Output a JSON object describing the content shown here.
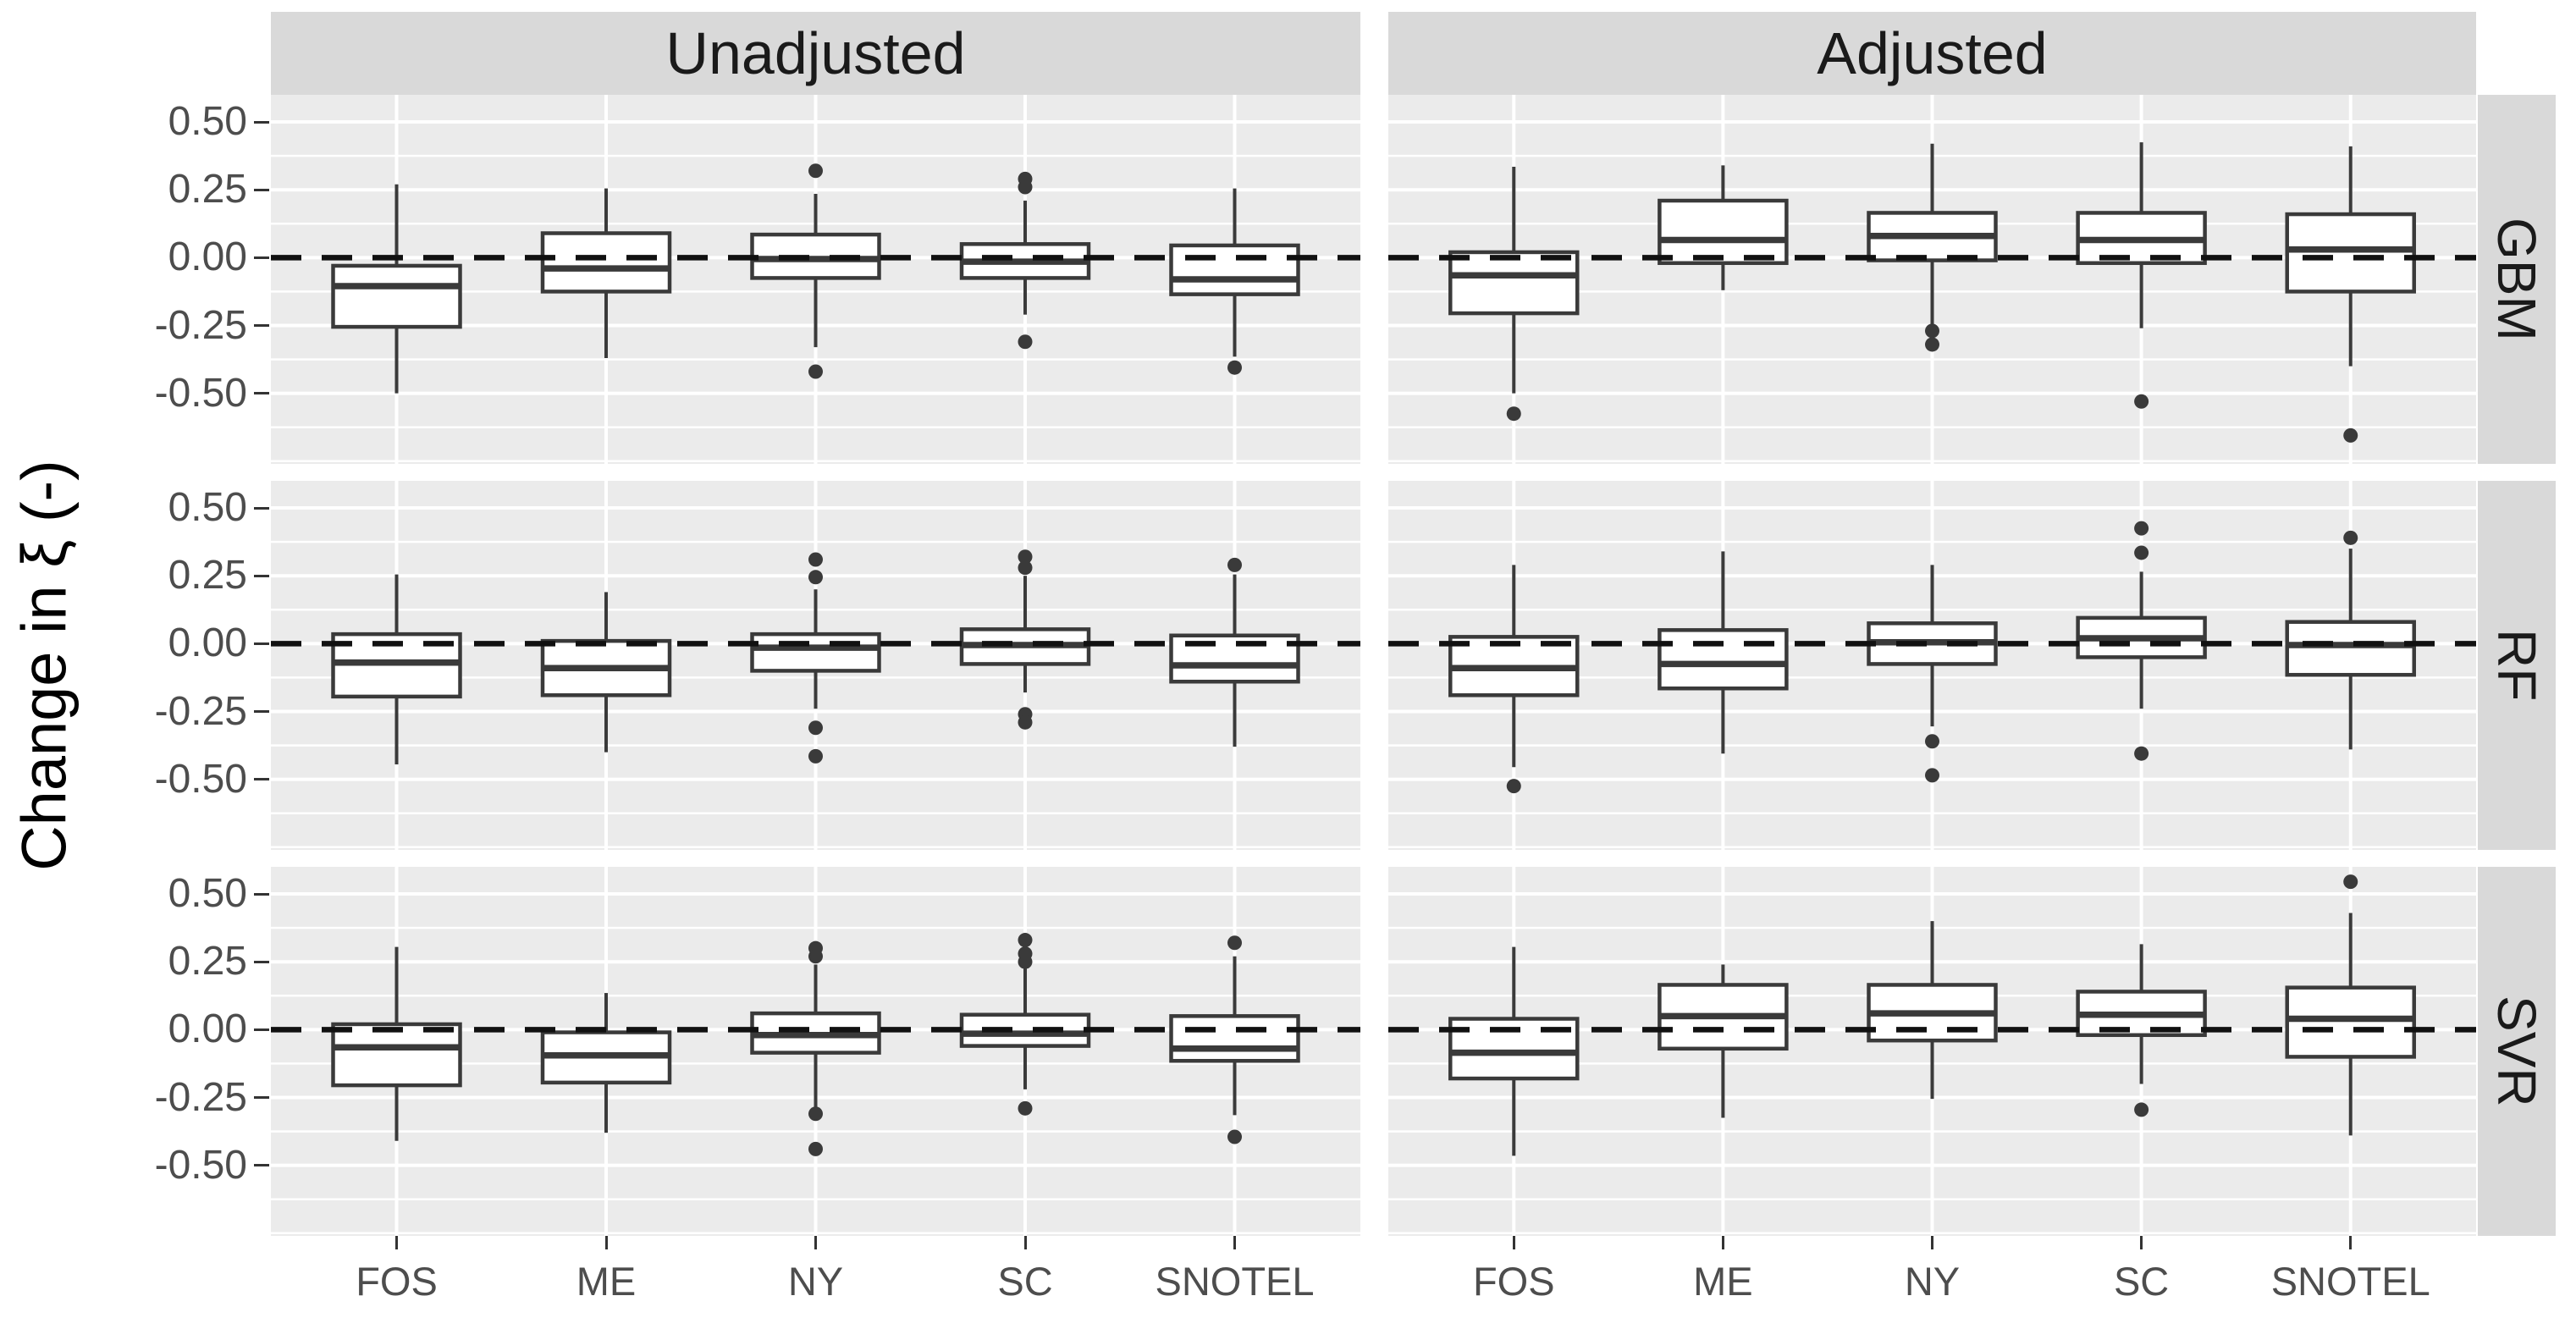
{
  "chart_data": {
    "type": "boxplot",
    "title": "",
    "ylabel": "Change in ξ (-)",
    "facet_columns": [
      "Unadjusted",
      "Adjusted"
    ],
    "facet_rows": [
      "GBM",
      "RF",
      "SVR"
    ],
    "categories": [
      "FOS",
      "ME",
      "NY",
      "SC",
      "SNOTEL"
    ],
    "y_axis": {
      "tick_labels": [
        "0.50",
        "0.25",
        "0.00",
        "-0.25",
        "-0.50"
      ],
      "tick_values": [
        0.5,
        0.25,
        0.0,
        -0.25,
        -0.5
      ],
      "minor_values": [
        0.375,
        0.125,
        -0.125,
        -0.375,
        -0.625,
        -0.75
      ],
      "ymax": 0.6,
      "ymin": -0.76,
      "grid": "on"
    },
    "reference_line": {
      "value": 0.0,
      "style": "dashed"
    },
    "panels": [
      {
        "facet_col": "Unadjusted",
        "facet_row": "GBM",
        "boxes": [
          {
            "category": "FOS",
            "whisker_low": -0.5,
            "q1": -0.255,
            "median": -0.105,
            "q3": -0.03,
            "whisker_high": 0.27,
            "outliers": []
          },
          {
            "category": "ME",
            "whisker_low": -0.37,
            "q1": -0.125,
            "median": -0.04,
            "q3": 0.09,
            "whisker_high": 0.255,
            "outliers": []
          },
          {
            "category": "NY",
            "whisker_low": -0.33,
            "q1": -0.075,
            "median": -0.005,
            "q3": 0.085,
            "whisker_high": 0.235,
            "outliers": [
              0.32,
              -0.42
            ]
          },
          {
            "category": "SC",
            "whisker_low": -0.21,
            "q1": -0.075,
            "median": -0.015,
            "q3": 0.05,
            "whisker_high": 0.21,
            "outliers": [
              0.29,
              0.26,
              -0.31
            ]
          },
          {
            "category": "SNOTEL",
            "whisker_low": -0.365,
            "q1": -0.135,
            "median": -0.08,
            "q3": 0.045,
            "whisker_high": 0.255,
            "outliers": [
              -0.405
            ]
          }
        ]
      },
      {
        "facet_col": "Adjusted",
        "facet_row": "GBM",
        "boxes": [
          {
            "category": "FOS",
            "whisker_low": -0.5,
            "q1": -0.205,
            "median": -0.065,
            "q3": 0.02,
            "whisker_high": 0.335,
            "outliers": [
              -0.575
            ]
          },
          {
            "category": "ME",
            "whisker_low": -0.12,
            "q1": -0.02,
            "median": 0.065,
            "q3": 0.21,
            "whisker_high": 0.34,
            "outliers": []
          },
          {
            "category": "NY",
            "whisker_low": -0.255,
            "q1": -0.01,
            "median": 0.08,
            "q3": 0.165,
            "whisker_high": 0.42,
            "outliers": [
              -0.27,
              -0.32
            ]
          },
          {
            "category": "SC",
            "whisker_low": -0.26,
            "q1": -0.02,
            "median": 0.065,
            "q3": 0.165,
            "whisker_high": 0.425,
            "outliers": [
              -0.53
            ]
          },
          {
            "category": "SNOTEL",
            "whisker_low": -0.4,
            "q1": -0.125,
            "median": 0.03,
            "q3": 0.16,
            "whisker_high": 0.41,
            "outliers": [
              -0.655
            ]
          }
        ]
      },
      {
        "facet_col": "Unadjusted",
        "facet_row": "RF",
        "boxes": [
          {
            "category": "FOS",
            "whisker_low": -0.445,
            "q1": -0.195,
            "median": -0.07,
            "q3": 0.035,
            "whisker_high": 0.255,
            "outliers": []
          },
          {
            "category": "ME",
            "whisker_low": -0.4,
            "q1": -0.19,
            "median": -0.09,
            "q3": 0.01,
            "whisker_high": 0.19,
            "outliers": []
          },
          {
            "category": "NY",
            "whisker_low": -0.24,
            "q1": -0.1,
            "median": -0.015,
            "q3": 0.035,
            "whisker_high": 0.2,
            "outliers": [
              0.31,
              0.245,
              -0.31,
              -0.415
            ]
          },
          {
            "category": "SC",
            "whisker_low": -0.18,
            "q1": -0.075,
            "median": -0.005,
            "q3": 0.053,
            "whisker_high": 0.25,
            "outliers": [
              0.32,
              0.28,
              -0.26,
              -0.29
            ]
          },
          {
            "category": "SNOTEL",
            "whisker_low": -0.38,
            "q1": -0.14,
            "median": -0.08,
            "q3": 0.03,
            "whisker_high": 0.255,
            "outliers": [
              0.29
            ]
          }
        ]
      },
      {
        "facet_col": "Adjusted",
        "facet_row": "RF",
        "boxes": [
          {
            "category": "FOS",
            "whisker_low": -0.455,
            "q1": -0.19,
            "median": -0.09,
            "q3": 0.025,
            "whisker_high": 0.29,
            "outliers": [
              -0.525
            ]
          },
          {
            "category": "ME",
            "whisker_low": -0.405,
            "q1": -0.165,
            "median": -0.075,
            "q3": 0.05,
            "whisker_high": 0.34,
            "outliers": []
          },
          {
            "category": "NY",
            "whisker_low": -0.305,
            "q1": -0.075,
            "median": 0.005,
            "q3": 0.075,
            "whisker_high": 0.29,
            "outliers": [
              -0.36,
              -0.485
            ]
          },
          {
            "category": "SC",
            "whisker_low": -0.24,
            "q1": -0.05,
            "median": 0.02,
            "q3": 0.095,
            "whisker_high": 0.265,
            "outliers": [
              0.425,
              0.335,
              -0.405
            ]
          },
          {
            "category": "SNOTEL",
            "whisker_low": -0.39,
            "q1": -0.115,
            "median": -0.005,
            "q3": 0.08,
            "whisker_high": 0.35,
            "outliers": [
              0.39
            ]
          }
        ]
      },
      {
        "facet_col": "Unadjusted",
        "facet_row": "SVR",
        "boxes": [
          {
            "category": "FOS",
            "whisker_low": -0.41,
            "q1": -0.205,
            "median": -0.065,
            "q3": 0.02,
            "whisker_high": 0.305,
            "outliers": []
          },
          {
            "category": "ME",
            "whisker_low": -0.38,
            "q1": -0.195,
            "median": -0.095,
            "q3": -0.01,
            "whisker_high": 0.135,
            "outliers": []
          },
          {
            "category": "NY",
            "whisker_low": -0.3,
            "q1": -0.085,
            "median": -0.02,
            "q3": 0.06,
            "whisker_high": 0.24,
            "outliers": [
              0.3,
              0.27,
              -0.31,
              -0.44
            ]
          },
          {
            "category": "SC",
            "whisker_low": -0.22,
            "q1": -0.06,
            "median": -0.015,
            "q3": 0.055,
            "whisker_high": 0.23,
            "outliers": [
              0.33,
              0.28,
              0.25,
              -0.29
            ]
          },
          {
            "category": "SNOTEL",
            "whisker_low": -0.315,
            "q1": -0.115,
            "median": -0.07,
            "q3": 0.05,
            "whisker_high": 0.27,
            "outliers": [
              0.32,
              -0.395
            ]
          }
        ]
      },
      {
        "facet_col": "Adjusted",
        "facet_row": "SVR",
        "boxes": [
          {
            "category": "FOS",
            "whisker_low": -0.465,
            "q1": -0.18,
            "median": -0.085,
            "q3": 0.04,
            "whisker_high": 0.305,
            "outliers": []
          },
          {
            "category": "ME",
            "whisker_low": -0.325,
            "q1": -0.07,
            "median": 0.05,
            "q3": 0.165,
            "whisker_high": 0.24,
            "outliers": []
          },
          {
            "category": "NY",
            "whisker_low": -0.255,
            "q1": -0.04,
            "median": 0.06,
            "q3": 0.165,
            "whisker_high": 0.4,
            "outliers": []
          },
          {
            "category": "SC",
            "whisker_low": -0.2,
            "q1": -0.02,
            "median": 0.055,
            "q3": 0.14,
            "whisker_high": 0.315,
            "outliers": [
              -0.295
            ]
          },
          {
            "category": "SNOTEL",
            "whisker_low": -0.39,
            "q1": -0.1,
            "median": 0.04,
            "q3": 0.155,
            "whisker_high": 0.43,
            "outliers": [
              0.545
            ]
          }
        ]
      }
    ]
  },
  "style": {
    "panel_bg": "#EBEBEB",
    "strip_bg": "#D9D9D9",
    "grid_color": "#FFFFFF",
    "box_stroke": "#3A3A3A",
    "box_fill": "#FFFFFF",
    "median_color": "#3A3A3A",
    "outlier_color": "#3A3A3A",
    "refline_color": "#111111",
    "tick_text_color": "#4D4D4D",
    "strip_text_color": "#1A1A1A",
    "axis_title_color": "#000000",
    "tick_mark_color": "#333333"
  }
}
